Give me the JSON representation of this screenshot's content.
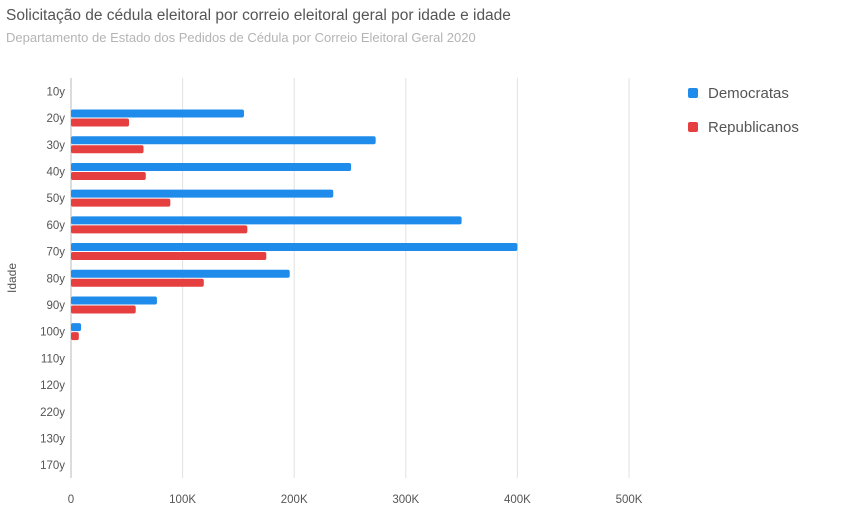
{
  "chart_data": {
    "type": "bar",
    "orientation": "horizontal",
    "title": "Solicitação de cédula eleitoral por correio eleitoral geral por idade e idade",
    "subtitle": "Departamento de Estado dos Pedidos de Cédula por Correio Eleitoral Geral 2020",
    "ylabel": "Idade",
    "xlabel": "",
    "categories": [
      "10y",
      "20y",
      "30y",
      "40y",
      "50y",
      "60y",
      "70y",
      "80y",
      "90y",
      "100y",
      "110y",
      "120y",
      "220y",
      "130y",
      "170y"
    ],
    "series": [
      {
        "name": "Democratas",
        "color": "#1f8ceb",
        "values": [
          0,
          155000,
          273000,
          251000,
          235000,
          350000,
          400000,
          196000,
          77000,
          9000,
          0,
          0,
          0,
          0,
          0
        ]
      },
      {
        "name": "Republicanos",
        "color": "#e53f3f",
        "values": [
          0,
          52000,
          65000,
          67000,
          89000,
          158000,
          175000,
          119000,
          58000,
          7000,
          0,
          0,
          0,
          0,
          0
        ]
      }
    ],
    "xlim": [
      0,
      500000
    ],
    "xticks": [
      {
        "value": 0,
        "label": "0"
      },
      {
        "value": 100000,
        "label": "100K"
      },
      {
        "value": 200000,
        "label": "200K"
      },
      {
        "value": 300000,
        "label": "300K"
      },
      {
        "value": 400000,
        "label": "400K"
      },
      {
        "value": 500000,
        "label": "500K"
      }
    ],
    "grid": true,
    "legend_position": "top-right"
  }
}
